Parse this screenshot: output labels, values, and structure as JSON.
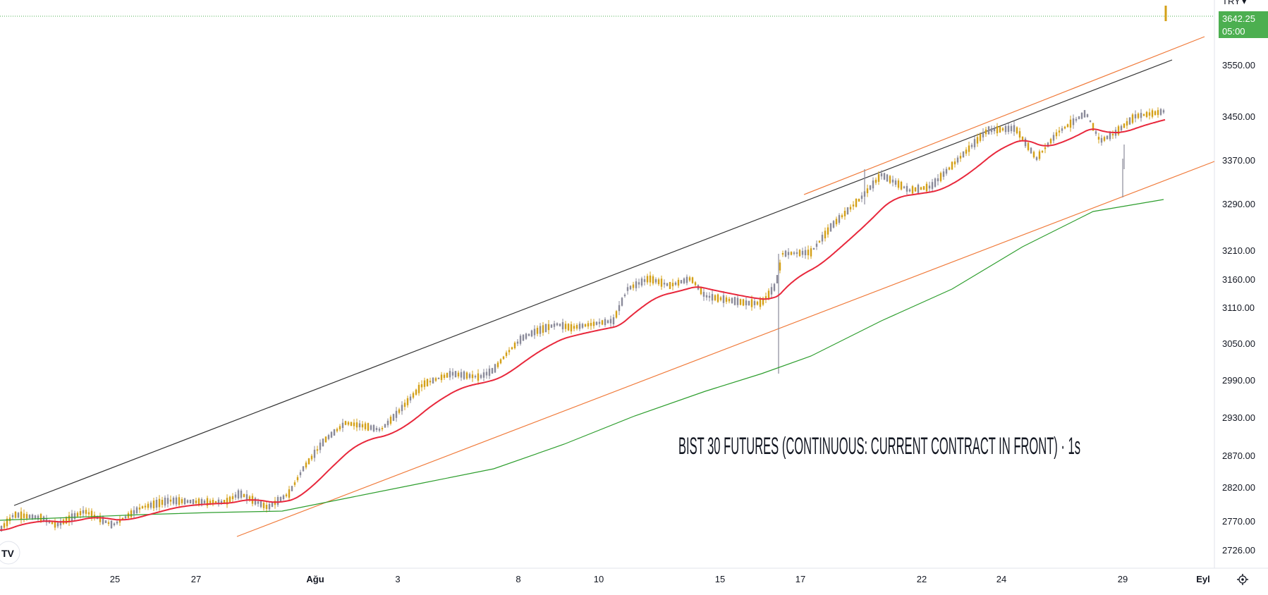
{
  "chart_data": {
    "type": "candlestick",
    "title": "BIST 30 FUTURES (CONTINUOUS: CURRENT CONTRACT IN FRONT) · 1s",
    "currency": "TRY",
    "last_price": "3642.25",
    "countdown": "05:00",
    "y_ticks": [
      "3550.00",
      "3450.00",
      "3370.00",
      "3290.00",
      "3210.00",
      "3160.00",
      "3110.00",
      "3050.00",
      "2990.00",
      "2930.00",
      "2870.00",
      "2820.00",
      "2770.00",
      "2726.00"
    ],
    "x_ticks": [
      "25",
      "27",
      "Ağu",
      "3",
      "8",
      "10",
      "15",
      "17",
      "22",
      "24",
      "29",
      "Eyl"
    ],
    "colors": {
      "up": "#8a8a9a",
      "down": "#d4a017",
      "ema_short": "#e8283c",
      "ema_long": "#2e9e2e",
      "channel": "#f07a3a",
      "trendline": "#333333",
      "price_box": "#4caf50"
    },
    "series": [
      {
        "name": "",
        "style": "ema_short"
      },
      {
        "name": "",
        "style": "ema_long"
      }
    ],
    "logo_text": "TV",
    "settings_icon": "gear-icon"
  }
}
